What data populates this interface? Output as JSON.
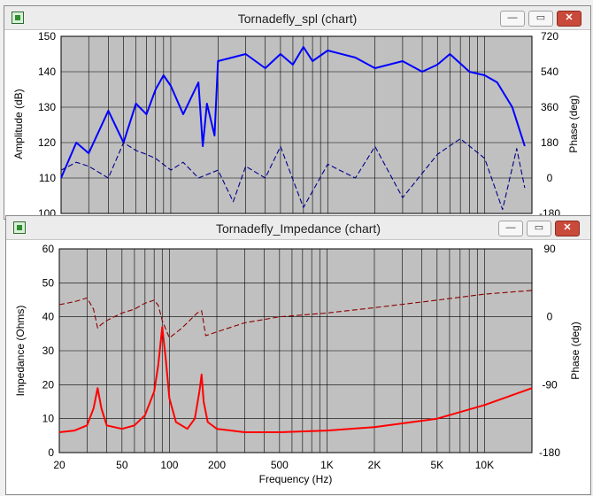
{
  "window_top": {
    "title": "Tornadefly_spl (chart)",
    "buttons": {
      "minimize": "—",
      "restore": "▭",
      "close": "✕"
    },
    "chart_data": {
      "type": "line",
      "ylabel": "Amplitude (dB)",
      "y2label": "Phase (deg)",
      "ylim": [
        100,
        150
      ],
      "y2lim": [
        -180,
        720
      ],
      "y_ticks": [
        "150",
        "140",
        "130",
        "120",
        "110",
        "100"
      ],
      "y2_ticks": [
        "720",
        "540",
        "360",
        "180",
        "0",
        "-180"
      ],
      "xlim": [
        20,
        20000
      ],
      "xscale": "log",
      "series": [
        {
          "color": "#0000ff",
          "x": [
            20,
            25,
            30,
            40,
            50,
            60,
            70,
            80,
            90,
            100,
            120,
            150,
            160,
            170,
            190,
            200,
            300,
            400,
            500,
            600,
            700,
            800,
            1000,
            1500,
            2000,
            3000,
            4000,
            5000,
            6000,
            8000,
            10000,
            12000,
            15000,
            18000
          ],
          "values": [
            110,
            120,
            117,
            129,
            120,
            131,
            128,
            135,
            139,
            136,
            128,
            137,
            119,
            131,
            122,
            143,
            145,
            141,
            145,
            142,
            147,
            143,
            146,
            144,
            141,
            143,
            140,
            142,
            145,
            140,
            139,
            137,
            130,
            119
          ]
        },
        {
          "color": "#00008b",
          "dashed": true,
          "x": [
            20,
            25,
            30,
            40,
            50,
            60,
            70,
            80,
            100,
            120,
            150,
            200,
            250,
            300,
            400,
            500,
            700,
            1000,
            1500,
            2000,
            3000,
            5000,
            7000,
            10000,
            13000,
            16000,
            18000
          ],
          "values": [
            40,
            80,
            60,
            0,
            180,
            140,
            120,
            100,
            40,
            80,
            0,
            40,
            -120,
            60,
            0,
            160,
            -150,
            70,
            0,
            160,
            -100,
            120,
            200,
            100,
            -160,
            150,
            -50
          ]
        }
      ]
    }
  },
  "window_bottom": {
    "title": "Tornadefly_Impedance (chart)",
    "buttons": {
      "minimize": "—",
      "restore": "▭",
      "close": "✕"
    },
    "chart_data": {
      "type": "line",
      "xlabel": "Frequency (Hz)",
      "ylabel": "Impedance (Ohms)",
      "y2label": "Phase (deg)",
      "ylim": [
        0,
        60
      ],
      "y2lim": [
        -180,
        90
      ],
      "y_ticks": [
        "60",
        "50",
        "40",
        "30",
        "20",
        "10",
        "0"
      ],
      "y2_ticks": [
        "90",
        "0",
        "-90",
        "-180"
      ],
      "x_ticks": [
        "20",
        "50",
        "100",
        "200",
        "500",
        "1K",
        "2K",
        "5K",
        "10K"
      ],
      "xlim": [
        20,
        20000
      ],
      "xscale": "log",
      "series": [
        {
          "color": "#ff0000",
          "x": [
            20,
            25,
            30,
            33,
            35,
            37,
            40,
            50,
            60,
            70,
            80,
            85,
            90,
            95,
            100,
            110,
            130,
            145,
            155,
            160,
            165,
            175,
            200,
            300,
            500,
            1000,
            2000,
            5000,
            10000,
            20000
          ],
          "values": [
            6,
            6.5,
            8,
            13,
            19,
            13,
            8,
            7,
            8,
            11,
            18,
            26,
            37,
            27,
            16,
            9,
            7,
            10,
            18,
            23,
            15,
            9,
            7,
            6,
            6,
            6.5,
            7.5,
            10,
            14,
            19
          ]
        },
        {
          "color": "#8b0000",
          "dashed": true,
          "x": [
            20,
            25,
            30,
            33,
            35,
            37,
            40,
            50,
            60,
            70,
            80,
            85,
            90,
            100,
            120,
            150,
            160,
            170,
            200,
            300,
            500,
            1000,
            2000,
            5000,
            10000,
            20000
          ],
          "values": [
            16,
            20,
            25,
            10,
            -15,
            -10,
            -5,
            5,
            10,
            18,
            22,
            15,
            -5,
            -28,
            -15,
            5,
            8,
            -25,
            -20,
            -8,
            0,
            5,
            12,
            22,
            30,
            35
          ]
        }
      ]
    }
  }
}
